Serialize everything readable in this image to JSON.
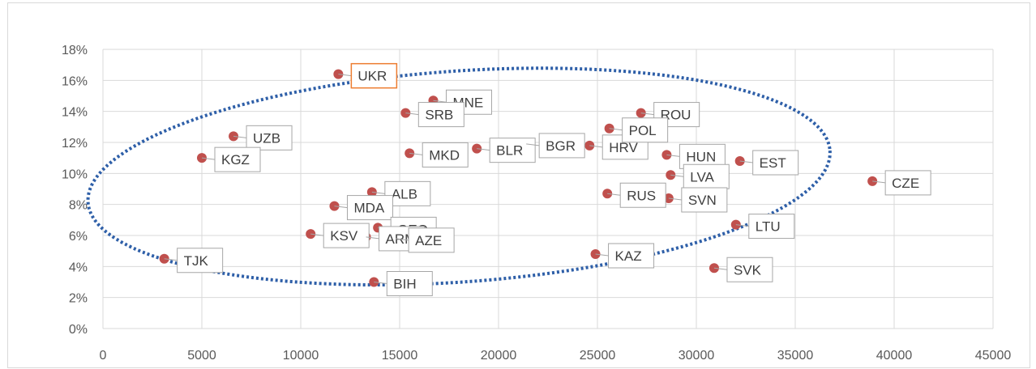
{
  "chart_data": {
    "type": "scatter",
    "title": "",
    "xlabel": "",
    "ylabel": "",
    "xlim": [
      0,
      45000
    ],
    "ylim": [
      0,
      0.18
    ],
    "x_ticks": [
      0,
      5000,
      10000,
      15000,
      20000,
      25000,
      30000,
      35000,
      40000,
      45000
    ],
    "x_tick_labels": [
      "0",
      "5000",
      "10000",
      "15000",
      "20000",
      "25000",
      "30000",
      "35000",
      "40000",
      "45000"
    ],
    "y_ticks": [
      0,
      0.02,
      0.04,
      0.06,
      0.08,
      0.1,
      0.12,
      0.14,
      0.16,
      0.18
    ],
    "y_tick_labels": [
      "0%",
      "2%",
      "4%",
      "6%",
      "8%",
      "10%",
      "12%",
      "14%",
      "16%",
      "18%"
    ],
    "grid": true,
    "legend": "none",
    "colors": {
      "point": "#c0504d",
      "highlight": "#ed7d31",
      "ellipse": "#2e5fa8",
      "grid": "#d9d9d9"
    },
    "points": [
      {
        "label": "UKR",
        "x": 11900,
        "y": 0.164,
        "highlight": true
      },
      {
        "label": "MNE",
        "x": 16700,
        "y": 0.147
      },
      {
        "label": "SRB",
        "x": 15300,
        "y": 0.139
      },
      {
        "label": "UZB",
        "x": 6600,
        "y": 0.124
      },
      {
        "label": "KGZ",
        "x": 5000,
        "y": 0.11
      },
      {
        "label": "MKD",
        "x": 15500,
        "y": 0.113
      },
      {
        "label": "BLR",
        "x": 18900,
        "y": 0.116
      },
      {
        "label": "BGR",
        "x": 21400,
        "y": 0.119
      },
      {
        "label": "HRV",
        "x": 24600,
        "y": 0.118
      },
      {
        "label": "ROU",
        "x": 27200,
        "y": 0.139
      },
      {
        "label": "POL",
        "x": 25600,
        "y": 0.129
      },
      {
        "label": "HUN",
        "x": 28500,
        "y": 0.112
      },
      {
        "label": "EST",
        "x": 32200,
        "y": 0.108
      },
      {
        "label": "LVA",
        "x": 28700,
        "y": 0.099
      },
      {
        "label": "CZE",
        "x": 38900,
        "y": 0.095
      },
      {
        "label": "ALB",
        "x": 13600,
        "y": 0.088
      },
      {
        "label": "MDA",
        "x": 11700,
        "y": 0.079
      },
      {
        "label": "RUS",
        "x": 25500,
        "y": 0.087
      },
      {
        "label": "SVN",
        "x": 28600,
        "y": 0.084
      },
      {
        "label": "GEO",
        "x": 13900,
        "y": 0.065
      },
      {
        "label": "KSV",
        "x": 10500,
        "y": 0.061
      },
      {
        "label": "ARM",
        "x": 13300,
        "y": 0.059
      },
      {
        "label": "AZE",
        "x": 14800,
        "y": 0.058
      },
      {
        "label": "LTU",
        "x": 32000,
        "y": 0.067
      },
      {
        "label": "KAZ",
        "x": 24900,
        "y": 0.048
      },
      {
        "label": "SVK",
        "x": 30900,
        "y": 0.039
      },
      {
        "label": "TJK",
        "x": 3100,
        "y": 0.045
      },
      {
        "label": "BIH",
        "x": 13700,
        "y": 0.03
      }
    ],
    "annotations": [
      {
        "type": "ellipse",
        "style": "dotted",
        "cx": 18000,
        "cy": 0.098,
        "rx": 18800,
        "ry": 0.068
      }
    ]
  }
}
